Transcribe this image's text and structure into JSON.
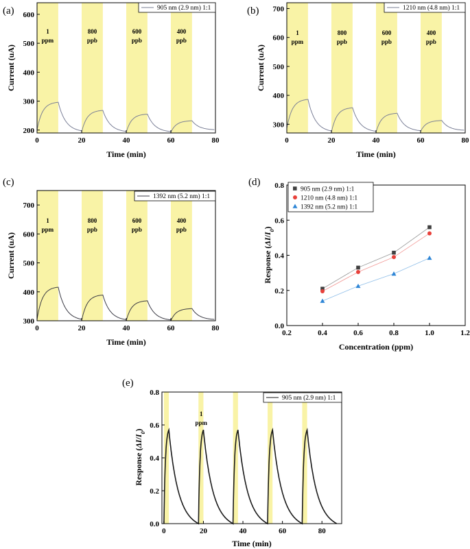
{
  "colors": {
    "band": "#f9f3a6",
    "trace_ab": "#7a7f96",
    "trace_c": "#3a3a44",
    "trace_e": "#1a1a1a",
    "frame": "#000000",
    "series_905": "#404040",
    "series_1210": "#e8403a",
    "series_1392": "#2f86d6"
  },
  "chart_data": [
    {
      "panel": "(a)",
      "type": "line",
      "xlabel": "Time (min)",
      "ylabel": "Current (uA)",
      "xlim": [
        0,
        80
      ],
      "ylim": [
        190,
        640
      ],
      "xticks": [
        0,
        20,
        40,
        60,
        80
      ],
      "yticks": [
        200,
        300,
        400,
        500,
        600
      ],
      "legend": "905 nm (2.9 nm) 1:1",
      "legend_position": "top-right",
      "bands": [
        [
          0,
          9.5
        ],
        [
          20,
          29.5
        ],
        [
          40,
          49.5
        ],
        [
          60,
          69.5
        ]
      ],
      "band_labels": [
        [
          "1",
          "ppm"
        ],
        [
          "800",
          "ppb"
        ],
        [
          "600",
          "ppb"
        ],
        [
          "400",
          "ppb"
        ]
      ],
      "cycles": [
        {
          "on": 0,
          "off": 9.5,
          "base": 200,
          "peak": 296
        },
        {
          "on": 20,
          "off": 29.5,
          "base": 193,
          "peak": 268
        },
        {
          "on": 40,
          "off": 49.5,
          "base": 192,
          "peak": 255
        },
        {
          "on": 60,
          "off": 69.5,
          "base": 192,
          "peak": 232
        }
      ],
      "end_value": 200
    },
    {
      "panel": "(b)",
      "type": "line",
      "xlabel": "Time (min)",
      "ylabel": "Current (uA)",
      "xlim": [
        0,
        80
      ],
      "ylim": [
        270,
        720
      ],
      "xticks": [
        0,
        20,
        40,
        60,
        80
      ],
      "yticks": [
        300,
        400,
        500,
        600,
        700
      ],
      "legend": "1210 nm (4.8 nm) 1:1",
      "legend_position": "top-right",
      "bands": [
        [
          0,
          9.5
        ],
        [
          20,
          29.5
        ],
        [
          40,
          49.5
        ],
        [
          60,
          69.5
        ]
      ],
      "band_labels": [
        [
          "1",
          "ppm"
        ],
        [
          "800",
          "ppb"
        ],
        [
          "600",
          "ppb"
        ],
        [
          "400",
          "ppb"
        ]
      ],
      "cycles": [
        {
          "on": 0,
          "off": 9.5,
          "base": 285,
          "peak": 386
        },
        {
          "on": 20,
          "off": 29.5,
          "base": 272,
          "peak": 357
        },
        {
          "on": 40,
          "off": 49.5,
          "base": 272,
          "peak": 338
        },
        {
          "on": 60,
          "off": 69.5,
          "base": 275,
          "peak": 313
        }
      ],
      "end_value": 278
    },
    {
      "panel": "(c)",
      "type": "line",
      "xlabel": "Time (min)",
      "ylabel": "Current (uA)",
      "xlim": [
        0,
        80
      ],
      "ylim": [
        300,
        750
      ],
      "xticks": [
        0,
        20,
        40,
        60,
        80
      ],
      "yticks": [
        300,
        400,
        500,
        600,
        700
      ],
      "legend": "1392 nm (5.2 nm) 1:1",
      "legend_position": "top-right",
      "bands": [
        [
          0,
          9.5
        ],
        [
          20,
          29.5
        ],
        [
          40,
          49.5
        ],
        [
          60,
          69.5
        ]
      ],
      "band_labels": [
        [
          "1",
          "ppm"
        ],
        [
          "800",
          "ppb"
        ],
        [
          "600",
          "ppb"
        ],
        [
          "400",
          "ppb"
        ]
      ],
      "cycles": [
        {
          "on": 0,
          "off": 9.5,
          "base": 305,
          "peak": 416
        },
        {
          "on": 20,
          "off": 29.5,
          "base": 300,
          "peak": 389
        },
        {
          "on": 40,
          "off": 49.5,
          "base": 300,
          "peak": 369
        },
        {
          "on": 60,
          "off": 69.5,
          "base": 300,
          "peak": 342
        }
      ],
      "end_value": 303
    },
    {
      "panel": "(d)",
      "type": "scatter",
      "xlabel": "Concentration (ppm)",
      "ylabel": "Response (ΔI/I0)",
      "xlim": [
        0.2,
        1.2
      ],
      "ylim": [
        0.0,
        0.8
      ],
      "xticks": [
        0.2,
        0.4,
        0.6,
        0.8,
        1.0,
        1.2
      ],
      "xtick_labels": [
        "0.2",
        "0.4",
        "0.6",
        "0.8",
        "1.0",
        "1.2"
      ],
      "yticks": [
        0.0,
        0.2,
        0.4,
        0.6,
        0.8
      ],
      "ytick_labels": [
        "0.0",
        "0.2",
        "0.4",
        "0.6",
        "0.8"
      ],
      "legend_position": "top-left",
      "x": [
        0.4,
        0.6,
        0.8,
        1.0
      ],
      "series": [
        {
          "name": "905 nm (2.9 nm) 1:1",
          "marker": "square",
          "color_key": "series_905",
          "values": [
            0.21,
            0.33,
            0.415,
            0.56
          ]
        },
        {
          "name": "1210 nm (4.8 nm) 1:1",
          "marker": "circle",
          "color_key": "series_1210",
          "values": [
            0.195,
            0.305,
            0.39,
            0.525
          ]
        },
        {
          "name": "1392 nm (5.2 nm) 1:1",
          "marker": "triangle",
          "color_key": "series_1392",
          "values": [
            0.14,
            0.225,
            0.295,
            0.385
          ]
        }
      ]
    },
    {
      "panel": "(e)",
      "type": "line",
      "xlabel": "Time (min)",
      "ylabel": "Response (ΔI/I0)",
      "xlim": [
        -1,
        90
      ],
      "ylim": [
        0.0,
        0.8
      ],
      "xticks": [
        0,
        20,
        40,
        60,
        80
      ],
      "yticks": [
        0.0,
        0.2,
        0.4,
        0.6,
        0.8
      ],
      "ytick_labels": [
        "0.0",
        "0.2",
        "0.4",
        "0.6",
        "0.8"
      ],
      "legend": "905 nm (2.9 nm) 1:1",
      "legend_position": "top-right",
      "band_note": [
        "1",
        "ppm"
      ],
      "cycles": [
        {
          "on": 0,
          "off": 2.5,
          "peak": 0.57,
          "end": 0.0
        },
        {
          "on": 17.5,
          "off": 20,
          "peak": 0.57,
          "end": 0.0
        },
        {
          "on": 35,
          "off": 37.5,
          "peak": 0.57,
          "end": 0.0
        },
        {
          "on": 52.5,
          "off": 55,
          "peak": 0.57,
          "end": 0.0
        },
        {
          "on": 70,
          "off": 72.5,
          "peak": 0.57,
          "end": 0.0
        }
      ],
      "cycle_end": 87.5
    }
  ]
}
